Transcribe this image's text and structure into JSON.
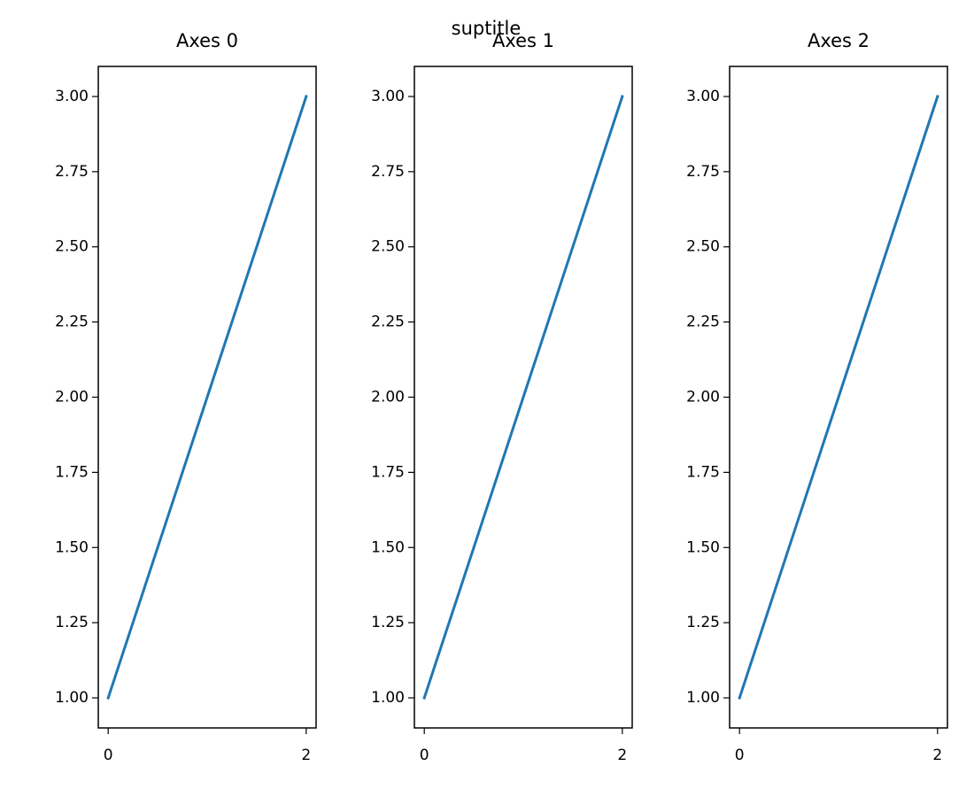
{
  "suptitle": "suptitle",
  "chart_data": [
    {
      "type": "line",
      "title": "Axes 0",
      "x": [
        0,
        1,
        2
      ],
      "values": [
        1,
        2,
        3
      ],
      "color": "#1f77b4",
      "xlim": [
        -0.1,
        2.1
      ],
      "ylim": [
        0.9,
        3.1
      ],
      "xticks": [
        0,
        2
      ],
      "yticks": [
        {
          "value": 1,
          "label": "1.00"
        },
        {
          "value": 1.25,
          "label": "1.25"
        },
        {
          "value": 1.5,
          "label": "1.50"
        },
        {
          "value": 1.75,
          "label": "1.75"
        },
        {
          "value": 2,
          "label": "2.00"
        },
        {
          "value": 2.25,
          "label": "2.25"
        },
        {
          "value": 2.5,
          "label": "2.50"
        },
        {
          "value": 2.75,
          "label": "2.75"
        },
        {
          "value": 3,
          "label": "3.00"
        }
      ]
    },
    {
      "type": "line",
      "title": "Axes 1",
      "x": [
        0,
        1,
        2
      ],
      "values": [
        1,
        2,
        3
      ],
      "color": "#1f77b4",
      "xlim": [
        -0.1,
        2.1
      ],
      "ylim": [
        0.9,
        3.1
      ],
      "xticks": [
        0,
        2
      ],
      "yticks": [
        {
          "value": 1,
          "label": "1.00"
        },
        {
          "value": 1.25,
          "label": "1.25"
        },
        {
          "value": 1.5,
          "label": "1.50"
        },
        {
          "value": 1.75,
          "label": "1.75"
        },
        {
          "value": 2,
          "label": "2.00"
        },
        {
          "value": 2.25,
          "label": "2.25"
        },
        {
          "value": 2.5,
          "label": "2.50"
        },
        {
          "value": 2.75,
          "label": "2.75"
        },
        {
          "value": 3,
          "label": "3.00"
        }
      ]
    },
    {
      "type": "line",
      "title": "Axes 2",
      "x": [
        0,
        1,
        2
      ],
      "values": [
        1,
        2,
        3
      ],
      "color": "#1f77b4",
      "xlim": [
        -0.1,
        2.1
      ],
      "ylim": [
        0.9,
        3.1
      ],
      "xticks": [
        0,
        2
      ],
      "yticks": [
        {
          "value": 1,
          "label": "1.00"
        },
        {
          "value": 1.25,
          "label": "1.25"
        },
        {
          "value": 1.5,
          "label": "1.50"
        },
        {
          "value": 1.75,
          "label": "1.75"
        },
        {
          "value": 2,
          "label": "2.00"
        },
        {
          "value": 2.25,
          "label": "2.25"
        },
        {
          "value": 2.5,
          "label": "2.50"
        },
        {
          "value": 2.75,
          "label": "2.75"
        },
        {
          "value": 3,
          "label": "3.00"
        }
      ]
    }
  ]
}
